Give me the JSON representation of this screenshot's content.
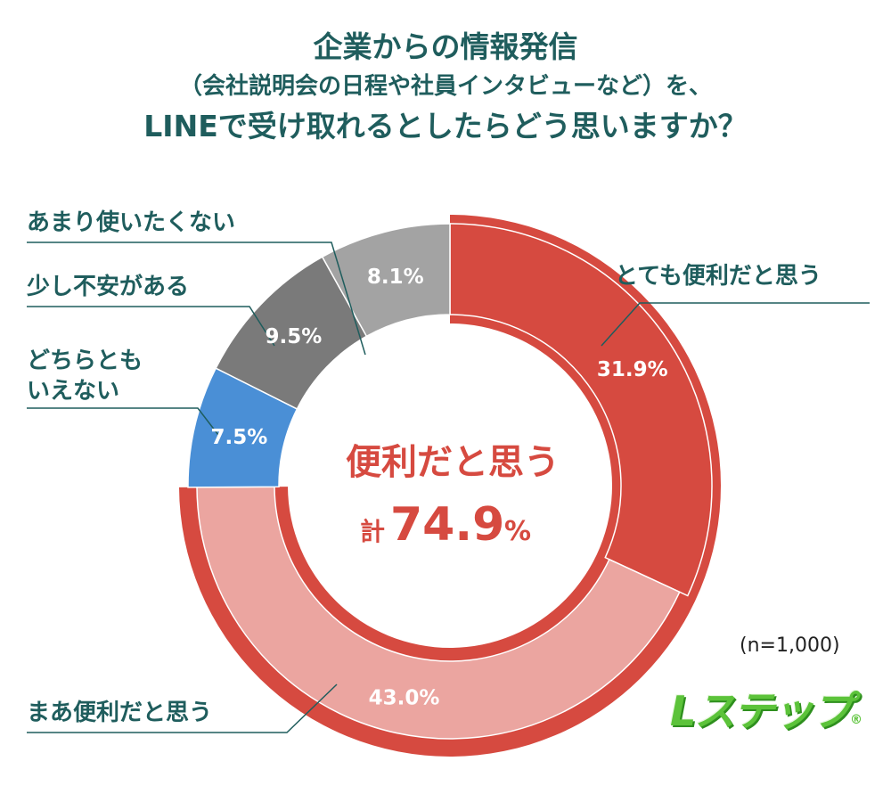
{
  "title": {
    "line1": "企業からの情報発信",
    "line2": "（会社説明会の日程や社員インタビューなど）を、",
    "line3": "LINEで受け取れるとしたらどう思いますか？"
  },
  "chart_data": {
    "type": "pie",
    "start": "top",
    "direction": "clockwise",
    "slices": [
      {
        "label": "とても便利だと思う",
        "value": 31.9,
        "display": "31.9%",
        "color": "#d64a40"
      },
      {
        "label": "まあ便利だと思う",
        "value": 43.0,
        "display": "43.0%",
        "color": "#eba5a0"
      },
      {
        "label_lines": [
          "どちらとも",
          "いえない"
        ],
        "value": 7.5,
        "display": "7.5%",
        "color": "#4a8fd6"
      },
      {
        "label": "少し不安がある",
        "value": 9.5,
        "display": "9.5%",
        "color": "#7a7a7a"
      },
      {
        "label": "あまり使いたくない",
        "value": 8.1,
        "display": "8.1%",
        "color": "#a3a3a3"
      }
    ],
    "center_text": {
      "line1": "便利だと思う",
      "kei": "計",
      "value": "74.9",
      "unit": "%"
    },
    "highlight_color": "#d64a40"
  },
  "sample_size": "(n=1,000)",
  "logo": {
    "text": "Lステップ",
    "registered": "®"
  }
}
